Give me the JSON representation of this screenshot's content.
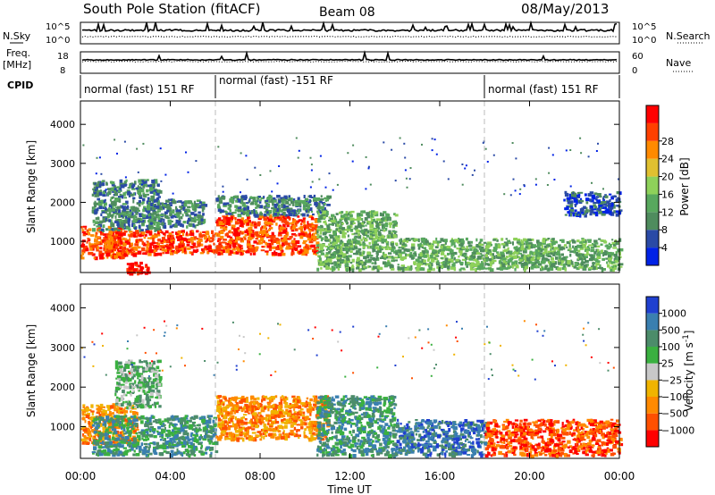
{
  "header": {
    "title": "South Pole Station (fitACF)",
    "beam": "Beam 08",
    "date": "08/May/2013"
  },
  "side_labels": {
    "nsky": "N.Sky",
    "freq": "Freq.",
    "mhz": "[MHz]",
    "cpid": "CPID",
    "nsearch": "N.Search",
    "nave": "Nave"
  },
  "strips": {
    "noise_ticks_left": [
      "10^5",
      "10^0"
    ],
    "noise_ticks_right": [
      "10^5",
      "10^0"
    ],
    "freq_ticks": [
      "18",
      "8"
    ],
    "nave_ticks": [
      "60",
      "0"
    ]
  },
  "cpid": {
    "segments": [
      {
        "label": "normal (fast) 151 RF",
        "start_h": 0
      },
      {
        "label": "normal (fast) -151 RF",
        "start_h": 6
      },
      {
        "label": "normal (fast) 151 RF",
        "start_h": 18
      }
    ]
  },
  "colors": {
    "power": [
      "#0022e6",
      "#2a4aa6",
      "#4f8c5e",
      "#58a85e",
      "#8ed15a",
      "#e0c030",
      "#ff8a00",
      "#ff4000",
      "#ff0000"
    ],
    "velocity": [
      "#2040d0",
      "#3a7fb0",
      "#4c8c6a",
      "#3ab040",
      "#c8c8c8",
      "#f0b400",
      "#ff8a00",
      "#ff5000",
      "#ff0000"
    ]
  },
  "chart_data": [
    {
      "type": "heatmap",
      "name": "power",
      "title": "",
      "xlabel": "",
      "ylabel": "Slant Range [km]",
      "xlim": [
        0,
        24
      ],
      "ylim": [
        200,
        4600
      ],
      "x_ticks": [
        "00:00",
        "04:00",
        "08:00",
        "12:00",
        "16:00",
        "20:00",
        "00:00"
      ],
      "y_ticks": [
        1000,
        2000,
        3000,
        4000
      ],
      "colorbar": {
        "label": "Power [dB]",
        "ticks": [
          4,
          8,
          12,
          16,
          20,
          24,
          28
        ],
        "range": [
          0,
          30
        ]
      },
      "echo_regions": [
        {
          "t": [
            0.0,
            2.0
          ],
          "range_km": [
            600,
            1400
          ],
          "level": 26
        },
        {
          "t": [
            0.5,
            3.5
          ],
          "range_km": [
            1300,
            2600
          ],
          "level": 9
        },
        {
          "t": [
            1.0,
            6.0
          ],
          "range_km": [
            700,
            1300
          ],
          "level": 27
        },
        {
          "t": [
            2.0,
            3.0
          ],
          "range_km": [
            200,
            500
          ],
          "level": 30
        },
        {
          "t": [
            3.0,
            5.5
          ],
          "range_km": [
            1400,
            2100
          ],
          "level": 6
        },
        {
          "t": [
            6.0,
            10.5
          ],
          "range_km": [
            700,
            1700
          ],
          "level": 26
        },
        {
          "t": [
            6.0,
            11.0
          ],
          "range_km": [
            1700,
            2200
          ],
          "level": 9
        },
        {
          "t": [
            10.5,
            14.0
          ],
          "range_km": [
            300,
            1800
          ],
          "level": 10
        },
        {
          "t": [
            14.0,
            18.0
          ],
          "range_km": [
            300,
            1100
          ],
          "level": 13
        },
        {
          "t": [
            18.0,
            24.0
          ],
          "range_km": [
            300,
            1100
          ],
          "level": 11
        },
        {
          "t": [
            21.5,
            24.0
          ],
          "range_km": [
            1700,
            2300
          ],
          "level": 5
        }
      ]
    },
    {
      "type": "heatmap",
      "name": "velocity",
      "title": "",
      "xlabel": "Time UT",
      "ylabel": "Slant Range [km]",
      "xlim": [
        0,
        24
      ],
      "ylim": [
        200,
        4600
      ],
      "x_ticks": [
        "00:00",
        "04:00",
        "08:00",
        "12:00",
        "16:00",
        "20:00",
        "00:00"
      ],
      "y_ticks": [
        1000,
        2000,
        3000,
        4000
      ],
      "colorbar": {
        "label": "Velocity [m s^-1]",
        "ticks": [
          "1000",
          "500",
          "100",
          "25",
          "-25",
          "-100",
          "-500",
          "-1000"
        ]
      },
      "echo_regions": [
        {
          "t": [
            0.0,
            2.5
          ],
          "range_km": [
            600,
            1600
          ],
          "level": "-100"
        },
        {
          "t": [
            1.5,
            3.5
          ],
          "range_km": [
            1500,
            2700
          ],
          "level": "25"
        },
        {
          "t": [
            0.5,
            6.0
          ],
          "range_km": [
            300,
            1300
          ],
          "level": "100"
        },
        {
          "t": [
            6.0,
            11.0
          ],
          "range_km": [
            700,
            1800
          ],
          "level": "-100"
        },
        {
          "t": [
            10.5,
            14.0
          ],
          "range_km": [
            300,
            1800
          ],
          "level": "100"
        },
        {
          "t": [
            14.0,
            18.0
          ],
          "range_km": [
            300,
            1200
          ],
          "level": "500"
        },
        {
          "t": [
            18.0,
            24.0
          ],
          "range_km": [
            300,
            1200
          ],
          "level": "-500"
        }
      ]
    }
  ]
}
